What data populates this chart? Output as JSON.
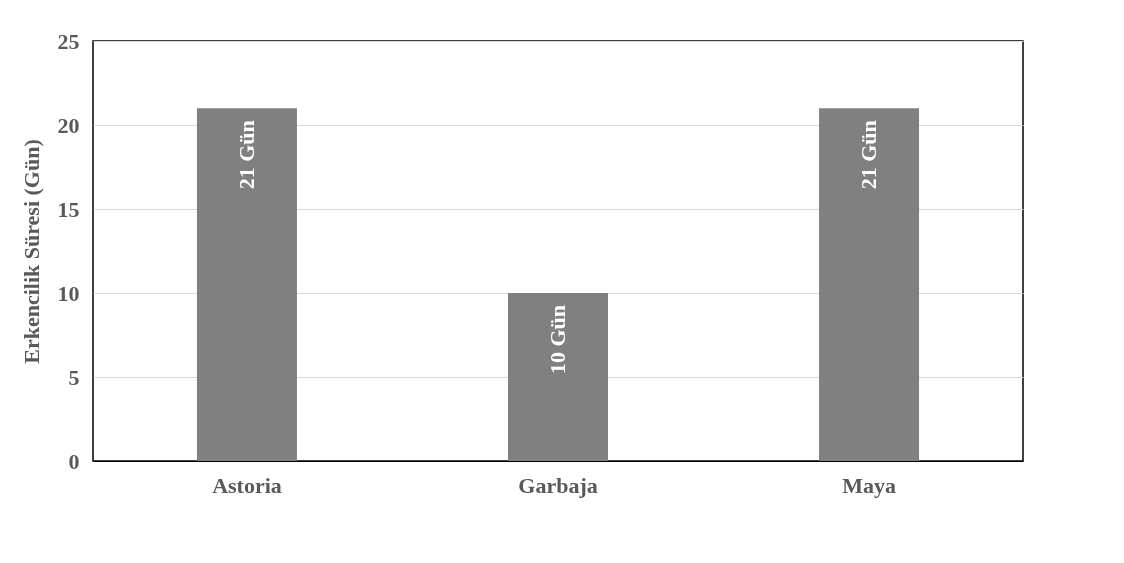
{
  "chart_data": {
    "type": "bar",
    "ylabel": "Erkencilik Süresi (Gün)",
    "categories": [
      "Astoria",
      "Garbaja",
      "Maya"
    ],
    "values": [
      21,
      10,
      21
    ],
    "value_labels": [
      "21 Gün",
      "10 Gün",
      "21 Gün"
    ],
    "color": "#808080",
    "ylim": [
      0,
      25
    ],
    "yticks": [
      0,
      5,
      10,
      15,
      20,
      25
    ],
    "grid": "y"
  }
}
